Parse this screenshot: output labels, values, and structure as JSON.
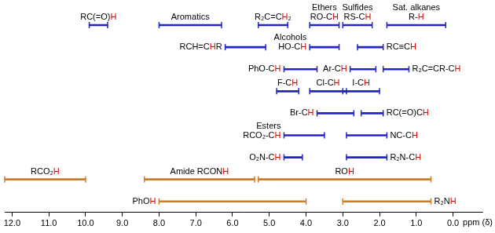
{
  "chart_data": {
    "type": "bar",
    "orientation": "horizontal",
    "xlabel": "ppm (δ)",
    "xlim": [
      12.2,
      -0.8
    ],
    "xticks": [
      {
        "value": 12,
        "label": "12.0"
      },
      {
        "value": 11,
        "label": "11.0"
      },
      {
        "value": 10,
        "label": "10.0"
      },
      {
        "value": 9,
        "label": "9.0"
      },
      {
        "value": 8,
        "label": "8.0"
      },
      {
        "value": 7,
        "label": "7.0"
      },
      {
        "value": 6,
        "label": "6.0"
      },
      {
        "value": 5,
        "label": "5.0"
      },
      {
        "value": 4,
        "label": "4.0"
      },
      {
        "value": 3,
        "label": "3.0"
      },
      {
        "value": 2,
        "label": "2.0"
      },
      {
        "value": 1,
        "label": "1.0"
      },
      {
        "value": 0,
        "label": "0.0"
      }
    ],
    "categories": [
      null,
      null,
      null,
      null,
      null,
      null,
      null,
      null,
      null
    ],
    "tick_labels": "x",
    "grid": false,
    "series": [
      {
        "name": "RC(=O)H",
        "color": "#2323c8",
        "values": [
          [
            9.4,
            9.9
          ],
          null,
          null,
          null,
          null,
          null,
          null,
          null,
          null
        ]
      },
      {
        "name": "Aromatics",
        "color": "#2323c8",
        "values": [
          [
            6.3,
            8.0
          ],
          null,
          null,
          null,
          null,
          null,
          null,
          null,
          null
        ]
      },
      {
        "name": "R₂C=CH₂",
        "color": "#2323c8",
        "values": [
          [
            4.5,
            5.3
          ],
          null,
          null,
          null,
          null,
          null,
          null,
          null,
          null
        ]
      },
      {
        "name": "Ethers\nRO-CH",
        "color": "#2323c8",
        "values": [
          [
            3.1,
            3.9
          ],
          null,
          null,
          null,
          null,
          null,
          null,
          null,
          null
        ]
      },
      {
        "name": "Sulfides\nRS-CH",
        "color": "#2323c8",
        "values": [
          [
            2.2,
            3.0
          ],
          null,
          null,
          null,
          null,
          null,
          null,
          null,
          null
        ]
      },
      {
        "name": "Sat. alkanes\nR-H",
        "color": "#2323c8",
        "values": [
          [
            0.2,
            1.8
          ],
          null,
          null,
          null,
          null,
          null,
          null,
          null,
          null
        ]
      },
      {
        "name": "RCH=CHR",
        "color": "#2323c8",
        "values": [
          null,
          [
            5.1,
            6.2
          ],
          null,
          null,
          null,
          null,
          null,
          null,
          null
        ]
      },
      {
        "name": "Alcohols\nHO-CH",
        "color": "#2323c8",
        "values": [
          null,
          [
            3.1,
            3.9
          ],
          null,
          null,
          null,
          null,
          null,
          null,
          null
        ]
      },
      {
        "name": "RC≡CH",
        "color": "#2323c8",
        "values": [
          null,
          [
            1.9,
            2.6
          ],
          null,
          null,
          null,
          null,
          null,
          null,
          null
        ]
      },
      {
        "name": "PhO-CH",
        "color": "#2323c8",
        "values": [
          null,
          null,
          [
            3.7,
            4.6
          ],
          null,
          null,
          null,
          null,
          null,
          null
        ]
      },
      {
        "name": "Ar-CH",
        "color": "#2323c8",
        "values": [
          null,
          null,
          [
            2.1,
            2.8
          ],
          null,
          null,
          null,
          null,
          null,
          null
        ]
      },
      {
        "name": "R₂C=CR-CH",
        "color": "#2323c8",
        "values": [
          null,
          null,
          [
            1.2,
            1.9
          ],
          null,
          null,
          null,
          null,
          null,
          null
        ]
      },
      {
        "name": "F-CH",
        "color": "#2323c8",
        "values": [
          null,
          null,
          null,
          [
            4.2,
            4.8
          ],
          null,
          null,
          null,
          null,
          null
        ]
      },
      {
        "name": "Cl-CH",
        "color": "#2323c8",
        "values": [
          null,
          null,
          null,
          [
            2.9,
            3.9
          ],
          null,
          null,
          null,
          null,
          null
        ]
      },
      {
        "name": "I-CH",
        "color": "#2323c8",
        "values": [
          null,
          null,
          null,
          [
            2.0,
            3.0
          ],
          null,
          null,
          null,
          null,
          null
        ]
      },
      {
        "name": "Br-CH",
        "color": "#2323c8",
        "values": [
          null,
          null,
          null,
          null,
          [
            2.7,
            3.7
          ],
          null,
          null,
          null,
          null
        ]
      },
      {
        "name": "RC(=O)CH",
        "color": "#2323c8",
        "values": [
          null,
          null,
          null,
          null,
          [
            1.9,
            2.5
          ],
          null,
          null,
          null,
          null
        ]
      },
      {
        "name": "Esters\nRCO₂-CH",
        "color": "#2323c8",
        "values": [
          null,
          null,
          null,
          null,
          null,
          [
            3.5,
            4.6
          ],
          null,
          null,
          null
        ]
      },
      {
        "name": "NC-CH",
        "color": "#2323c8",
        "values": [
          null,
          null,
          null,
          null,
          null,
          [
            1.8,
            2.9
          ],
          null,
          null,
          null
        ]
      },
      {
        "name": "O₂N-CH",
        "color": "#2323c8",
        "values": [
          null,
          null,
          null,
          null,
          null,
          null,
          [
            4.1,
            4.6
          ],
          null,
          null
        ]
      },
      {
        "name": "R₂N-CH",
        "color": "#2323c8",
        "values": [
          null,
          null,
          null,
          null,
          null,
          null,
          [
            1.8,
            2.9
          ],
          null,
          null
        ]
      },
      {
        "name": "RCO₂H",
        "color": "#d07a2c",
        "values": [
          null,
          null,
          null,
          null,
          null,
          null,
          null,
          [
            10.0,
            12.2
          ],
          null
        ]
      },
      {
        "name": "Amide RCONH",
        "color": "#d07a2c",
        "values": [
          null,
          null,
          null,
          null,
          null,
          null,
          null,
          [
            5.4,
            8.4
          ],
          null
        ]
      },
      {
        "name": "ROH",
        "color": "#d07a2c",
        "values": [
          null,
          null,
          null,
          null,
          null,
          null,
          null,
          [
            0.6,
            5.3
          ],
          null
        ]
      },
      {
        "name": "PhOH",
        "color": "#d07a2c",
        "values": [
          null,
          null,
          null,
          null,
          null,
          null,
          null,
          null,
          [
            4.0,
            8.0
          ]
        ]
      },
      {
        "name": "R₂NH",
        "color": "#d07a2c",
        "values": [
          null,
          null,
          null,
          null,
          null,
          null,
          null,
          null,
          [
            0.6,
            3.0
          ]
        ]
      }
    ]
  }
}
